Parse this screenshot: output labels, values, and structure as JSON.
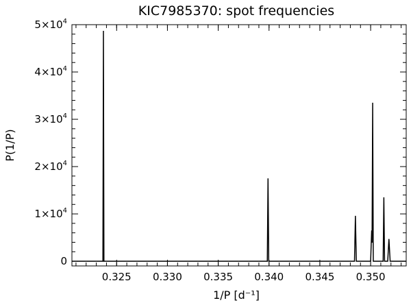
{
  "chart_data": {
    "type": "line",
    "title": "KIC7985370: spot frequencies",
    "xlabel": "1/P [d⁻¹]",
    "ylabel": "P(1/P)",
    "xlim": [
      0.3206,
      0.3535
    ],
    "ylim": [
      -1000,
      50000
    ],
    "x_ticks": [
      0.325,
      0.33,
      0.335,
      0.34,
      0.345,
      0.35
    ],
    "x_tick_labels": [
      "0.325",
      "0.330",
      "0.335",
      "0.340",
      "0.345",
      "0.350"
    ],
    "y_ticks": [
      0,
      10000,
      20000,
      30000,
      40000,
      50000
    ],
    "y_tick_labels": [
      {
        "mant": "0",
        "exp": ""
      },
      {
        "mant": "1×10",
        "exp": "4"
      },
      {
        "mant": "2×10",
        "exp": "4"
      },
      {
        "mant": "3×10",
        "exp": "4"
      },
      {
        "mant": "4×10",
        "exp": "4"
      },
      {
        "mant": "5×10",
        "exp": "4"
      }
    ],
    "grid": false,
    "series": [
      {
        "color": "#000000",
        "peaks": [
          {
            "x": 0.3237,
            "height": 48700,
            "halfwidth": 5e-05
          },
          {
            "x": 0.3399,
            "height": 17500,
            "halfwidth": 7e-05
          },
          {
            "x": 0.3485,
            "height": 9600,
            "halfwidth": 9e-05
          },
          {
            "x": 0.3501,
            "height": 6500,
            "halfwidth": 0.0001
          },
          {
            "x": 0.3502,
            "height": 33500,
            "halfwidth": 6e-05
          },
          {
            "x": 0.3513,
            "height": 13500,
            "halfwidth": 7e-05
          },
          {
            "x": 0.3518,
            "height": 4700,
            "halfwidth": 0.00012
          }
        ]
      }
    ]
  }
}
